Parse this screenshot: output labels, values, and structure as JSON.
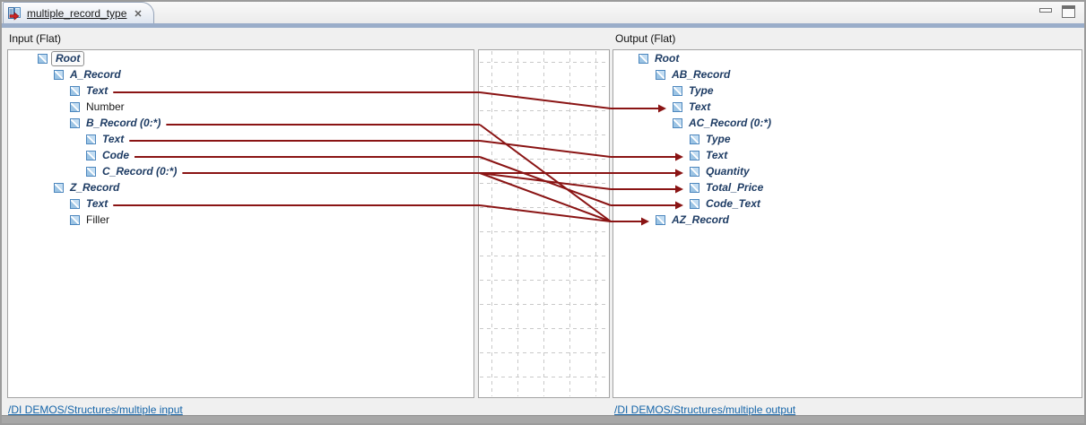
{
  "tab": {
    "title": "multiple_record_type",
    "close_glyph": "✕"
  },
  "header": {
    "input_label": "Input (Flat)",
    "output_label": "Output (Flat)"
  },
  "input_tree": [
    {
      "id": "in-root",
      "label": "Root",
      "level": 0,
      "emphasis": true,
      "selected": true
    },
    {
      "id": "in-a-record",
      "label": "A_Record",
      "level": 1,
      "emphasis": true
    },
    {
      "id": "in-a-text",
      "label": "Text",
      "level": 2,
      "emphasis": true
    },
    {
      "id": "in-number",
      "label": "Number",
      "level": 2,
      "emphasis": false
    },
    {
      "id": "in-b-record",
      "label": "B_Record (0:*)",
      "level": 2,
      "emphasis": true
    },
    {
      "id": "in-b-text",
      "label": "Text",
      "level": 3,
      "emphasis": true
    },
    {
      "id": "in-code",
      "label": "Code",
      "level": 3,
      "emphasis": true
    },
    {
      "id": "in-c-record",
      "label": "C_Record (0:*)",
      "level": 3,
      "emphasis": true
    },
    {
      "id": "in-z-record",
      "label": "Z_Record",
      "level": 1,
      "emphasis": true
    },
    {
      "id": "in-z-text",
      "label": "Text",
      "level": 2,
      "emphasis": true
    },
    {
      "id": "in-filler",
      "label": "Filler",
      "level": 2,
      "emphasis": false
    }
  ],
  "output_tree": [
    {
      "id": "out-root",
      "label": "Root",
      "level": 0,
      "emphasis": true
    },
    {
      "id": "out-ab-record",
      "label": "AB_Record",
      "level": 1,
      "emphasis": true
    },
    {
      "id": "out-ab-type",
      "label": "Type",
      "level": 2,
      "emphasis": true
    },
    {
      "id": "out-ab-text",
      "label": "Text",
      "level": 2,
      "emphasis": true
    },
    {
      "id": "out-ac-record",
      "label": "AC_Record (0:*)",
      "level": 2,
      "emphasis": true
    },
    {
      "id": "out-ac-type",
      "label": "Type",
      "level": 3,
      "emphasis": true
    },
    {
      "id": "out-ac-text",
      "label": "Text",
      "level": 3,
      "emphasis": true
    },
    {
      "id": "out-quantity",
      "label": "Quantity",
      "level": 3,
      "emphasis": true
    },
    {
      "id": "out-total-price",
      "label": "Total_Price",
      "level": 3,
      "emphasis": true
    },
    {
      "id": "out-code-text",
      "label": "Code_Text",
      "level": 3,
      "emphasis": true
    },
    {
      "id": "out-az-record",
      "label": "AZ_Record",
      "level": 1,
      "emphasis": true
    }
  ],
  "mappings": [
    {
      "from": "in-a-text",
      "to": "out-ab-text"
    },
    {
      "from": "in-b-record",
      "to": "out-az-record"
    },
    {
      "from": "in-b-text",
      "to": "out-ac-text"
    },
    {
      "from": "in-code",
      "to": "out-code-text"
    },
    {
      "from": "in-c-record",
      "to": "out-quantity"
    },
    {
      "from": "in-c-record",
      "to": "out-total-price"
    },
    {
      "from": "in-c-record",
      "to": "out-az-record"
    },
    {
      "from": "in-z-text",
      "to": "out-az-record"
    }
  ],
  "links": {
    "input": "/DI DEMOS/Structures/multiple input",
    "output": "/DI DEMOS/Structures/multiple output"
  },
  "colors": {
    "mapping_line": "#8a1414",
    "tree_text": "#1e3c64",
    "plain_text": "#1a1a1a",
    "link": "#1464a8",
    "accent_strip": "#9aadc9",
    "grid_line": "#c9c9c9"
  }
}
